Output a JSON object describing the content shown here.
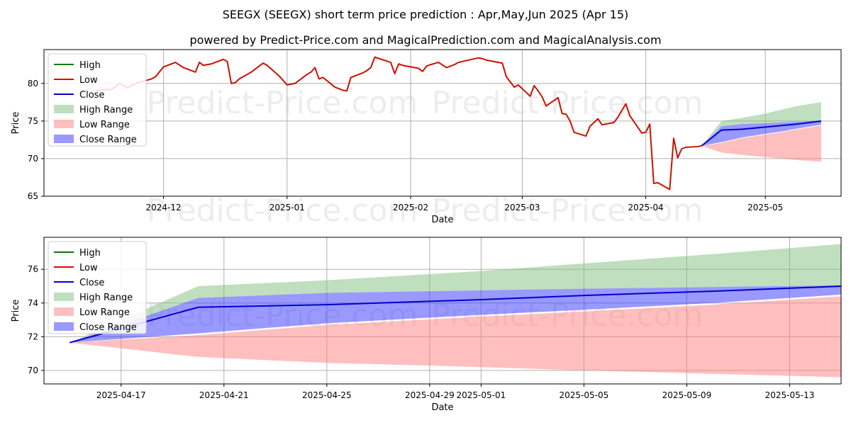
{
  "chart_data": [
    {
      "type": "line",
      "title": "SEEGX (SEEGX) short term price prediction : Apr,May,Jun 2025 (Apr 15)",
      "subtitle": "powered by Predict-Price.com and MagicalPrediction.com and MagicalAnalysis.com",
      "xlabel": "Date",
      "ylabel": "Price",
      "xlim": [
        "2024-11-01",
        "2025-05-20"
      ],
      "ylim": [
        65,
        84.5
      ],
      "xticks": [
        "2024-12",
        "2025-01",
        "2025-02",
        "2025-03",
        "2025-04",
        "2025-05"
      ],
      "yticks": [
        65,
        70,
        75,
        80
      ],
      "legend_location": "top-left",
      "legend": [
        "High",
        "Low",
        "Close",
        "High Range",
        "Low Range",
        "Close Range"
      ],
      "colors": {
        "high": "#008000",
        "low": "#cc1100",
        "close": "#0000cc",
        "high_range": "#7fbf7f",
        "low_range": "#ff7f7f",
        "close_range": "#3333ff"
      },
      "watermark": [
        "Predict-Price.com",
        "Predict-Price.com",
        "Predict-Price.com",
        "Predict-Price.com"
      ],
      "history": {
        "name": "Low",
        "dates": [
          "2024-11-14",
          "2024-11-16",
          "2024-11-18",
          "2024-11-20",
          "2024-11-22",
          "2024-11-24",
          "2024-11-26",
          "2024-11-28",
          "2024-11-29",
          "2024-12-01",
          "2024-12-04",
          "2024-12-06",
          "2024-12-09",
          "2024-12-10",
          "2024-12-11",
          "2024-12-13",
          "2024-12-16",
          "2024-12-17",
          "2024-12-18",
          "2024-12-19",
          "2024-12-20",
          "2024-12-23",
          "2024-12-26",
          "2024-12-27",
          "2024-12-30",
          "2025-01-01",
          "2025-01-03",
          "2025-01-06",
          "2025-01-07",
          "2025-01-08",
          "2025-01-09",
          "2025-01-10",
          "2025-01-13",
          "2025-01-14",
          "2025-01-15",
          "2025-01-16",
          "2025-01-17",
          "2025-01-20",
          "2025-01-21",
          "2025-01-22",
          "2025-01-23",
          "2025-01-27",
          "2025-01-28",
          "2025-01-29",
          "2025-01-30",
          "2025-02-03",
          "2025-02-04",
          "2025-02-05",
          "2025-02-06",
          "2025-02-08",
          "2025-02-10",
          "2025-02-11",
          "2025-02-12",
          "2025-02-13",
          "2025-02-18",
          "2025-02-19",
          "2025-02-20",
          "2025-02-24",
          "2025-02-25",
          "2025-02-26",
          "2025-02-27",
          "2025-02-28",
          "2025-03-03",
          "2025-03-04",
          "2025-03-05",
          "2025-03-06",
          "2025-03-07",
          "2025-03-10",
          "2025-03-11",
          "2025-03-12",
          "2025-03-13",
          "2025-03-14",
          "2025-03-17",
          "2025-03-18",
          "2025-03-19",
          "2025-03-20",
          "2025-03-21",
          "2025-03-24",
          "2025-03-25",
          "2025-03-26",
          "2025-03-27",
          "2025-03-28",
          "2025-03-31",
          "2025-04-01",
          "2025-04-02",
          "2025-04-03",
          "2025-04-04",
          "2025-04-07",
          "2025-04-08",
          "2025-04-09",
          "2025-04-10",
          "2025-04-11",
          "2025-04-14",
          "2025-04-15"
        ],
        "values": [
          79.0,
          79.2,
          79.2,
          80.0,
          79.4,
          80.0,
          80.3,
          80.6,
          80.9,
          82.2,
          82.8,
          82.1,
          81.5,
          82.8,
          82.4,
          82.6,
          83.2,
          82.9,
          80.0,
          80.1,
          80.6,
          81.5,
          82.7,
          82.4,
          81.0,
          79.8,
          80.0,
          81.2,
          81.5,
          82.1,
          80.6,
          80.8,
          79.5,
          79.3,
          79.1,
          79.0,
          80.8,
          81.4,
          81.7,
          82.1,
          83.5,
          82.8,
          81.3,
          82.6,
          82.4,
          82.0,
          81.6,
          82.3,
          82.5,
          82.8,
          82.1,
          82.3,
          82.5,
          82.8,
          83.4,
          83.3,
          83.1,
          82.7,
          80.9,
          80.2,
          79.5,
          79.8,
          78.3,
          79.7,
          79.0,
          78.2,
          77.0,
          78.1,
          76.0,
          75.9,
          75.0,
          73.5,
          73.0,
          74.3,
          74.8,
          75.3,
          74.5,
          74.8,
          75.5,
          76.4,
          77.3,
          75.7,
          73.4,
          73.5,
          74.6,
          66.7,
          66.8,
          65.9,
          72.7,
          70.1,
          71.3,
          71.5,
          71.6,
          71.7
        ]
      },
      "forecast": {
        "dates": [
          "2025-04-15",
          "2025-04-20",
          "2025-04-25",
          "2025-05-01",
          "2025-05-05",
          "2025-05-09",
          "2025-05-15"
        ],
        "high_range_upper": [
          71.7,
          75.0,
          75.4,
          76.0,
          76.5,
          77.0,
          77.5
        ],
        "low_range_lower": [
          71.7,
          70.8,
          70.5,
          70.2,
          70.0,
          69.8,
          69.6
        ],
        "low_range_upper": [
          71.7,
          72.1,
          72.7,
          73.2,
          73.5,
          73.9,
          74.4
        ],
        "close_range_lower": [
          71.7,
          72.2,
          72.8,
          73.3,
          73.6,
          74.0,
          74.5
        ],
        "close_range_upper": [
          71.7,
          74.3,
          74.6,
          74.7,
          74.8,
          74.9,
          75.0
        ],
        "close": [
          71.7,
          73.8,
          73.9,
          74.2,
          74.4,
          74.6,
          75.0
        ]
      }
    },
    {
      "type": "area",
      "xlabel": "Date",
      "ylabel": "Price",
      "xlim": [
        "2025-04-14",
        "2025-05-15"
      ],
      "ylim": [
        69.2,
        77.9
      ],
      "xticks": [
        "2025-04-17",
        "2025-04-21",
        "2025-04-25",
        "2025-04-29",
        "2025-05-01",
        "2025-05-05",
        "2025-05-09",
        "2025-05-13"
      ],
      "yticks": [
        70,
        72,
        74,
        76
      ],
      "legend_location": "top-left",
      "legend": [
        "High",
        "Low",
        "Close",
        "High Range",
        "Low Range",
        "Close Range"
      ],
      "watermark": [
        "Predict-Price.com",
        "Predict-Price.com"
      ],
      "forecast": {
        "dates": [
          "2025-04-15",
          "2025-04-20",
          "2025-04-25",
          "2025-05-01",
          "2025-05-05",
          "2025-05-10",
          "2025-05-15"
        ],
        "high_range_upper": [
          71.65,
          75.0,
          75.35,
          75.9,
          76.35,
          76.9,
          77.5
        ],
        "low_range_lower": [
          71.65,
          70.8,
          70.45,
          70.2,
          70.0,
          69.8,
          69.6
        ],
        "low_range_upper": [
          71.65,
          72.1,
          72.7,
          73.2,
          73.5,
          73.9,
          74.4
        ],
        "close_range_lower": [
          71.65,
          72.2,
          72.8,
          73.3,
          73.6,
          74.0,
          74.5
        ],
        "close_range_upper": [
          71.65,
          74.3,
          74.6,
          74.75,
          74.85,
          74.95,
          75.05
        ],
        "close": [
          71.65,
          73.75,
          73.9,
          74.2,
          74.45,
          74.7,
          75.0
        ]
      }
    }
  ]
}
